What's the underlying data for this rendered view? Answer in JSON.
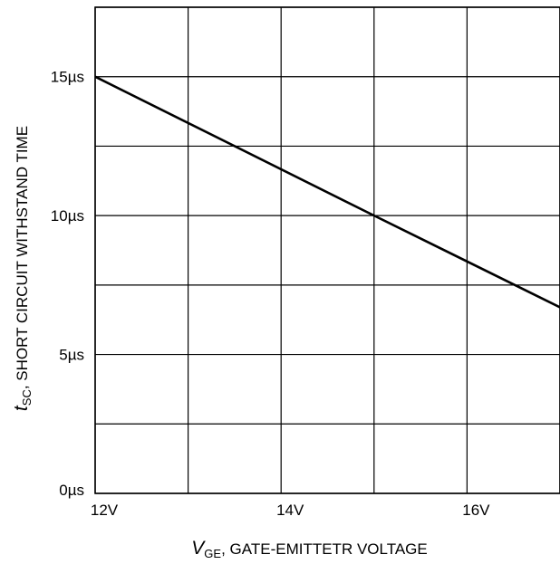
{
  "chart_data": {
    "type": "line",
    "xlabel": {
      "symbol": "V",
      "sub": "GE",
      "text": ", GATE-EMITTETR VOLTAGE"
    },
    "ylabel": {
      "symbol": "t",
      "sub": "SC",
      "text": ",  SHORT CIRCUIT WITHSTAND TIME"
    },
    "xlim": [
      12,
      17
    ],
    "ylim": [
      0,
      17.5
    ],
    "x_ticks": [
      {
        "value": 12,
        "label": "12V"
      },
      {
        "value": 14,
        "label": "14V"
      },
      {
        "value": 16,
        "label": "16V"
      }
    ],
    "y_ticks": [
      {
        "value": 0,
        "label": "0µs"
      },
      {
        "value": 5,
        "label": "5µs"
      },
      {
        "value": 10,
        "label": "10µs"
      },
      {
        "value": 15,
        "label": "15µs"
      }
    ],
    "x_grid": [
      12,
      13,
      14,
      15,
      16,
      17
    ],
    "y_grid": [
      0,
      2.5,
      5,
      7.5,
      10,
      12.5,
      15,
      17.5
    ],
    "grid": true,
    "series": [
      {
        "x": [
          12,
          15,
          17
        ],
        "y": [
          15,
          10,
          6.7
        ]
      }
    ]
  }
}
